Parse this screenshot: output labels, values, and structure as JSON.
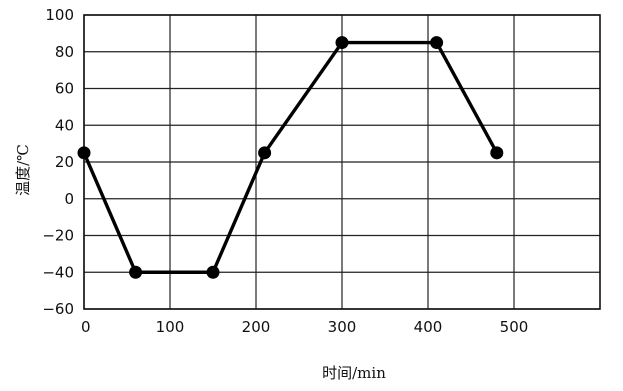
{
  "chart_data": {
    "type": "line",
    "xlabel": "时间/min",
    "ylabel": "温度/℃",
    "xlim": [
      0,
      600
    ],
    "ylim": [
      -60,
      100
    ],
    "x_ticks": [
      0,
      100,
      200,
      300,
      400,
      500
    ],
    "y_ticks": [
      100,
      80,
      60,
      40,
      20,
      0,
      -20,
      -40,
      -60
    ],
    "x_tick_labels": [
      "0",
      "100",
      "200",
      "300",
      "400",
      "500"
    ],
    "y_tick_labels": [
      "100",
      "80",
      "60",
      "40",
      "20",
      "0",
      "−20",
      "−40",
      "−60"
    ],
    "grid": true,
    "series": [
      {
        "x": [
          0,
          60,
          150,
          210,
          300,
          410,
          480
        ],
        "y": [
          25,
          -40,
          -40,
          25,
          85,
          85,
          25
        ]
      }
    ],
    "colors": {
      "line": "#000000",
      "grid": "#222222"
    }
  }
}
